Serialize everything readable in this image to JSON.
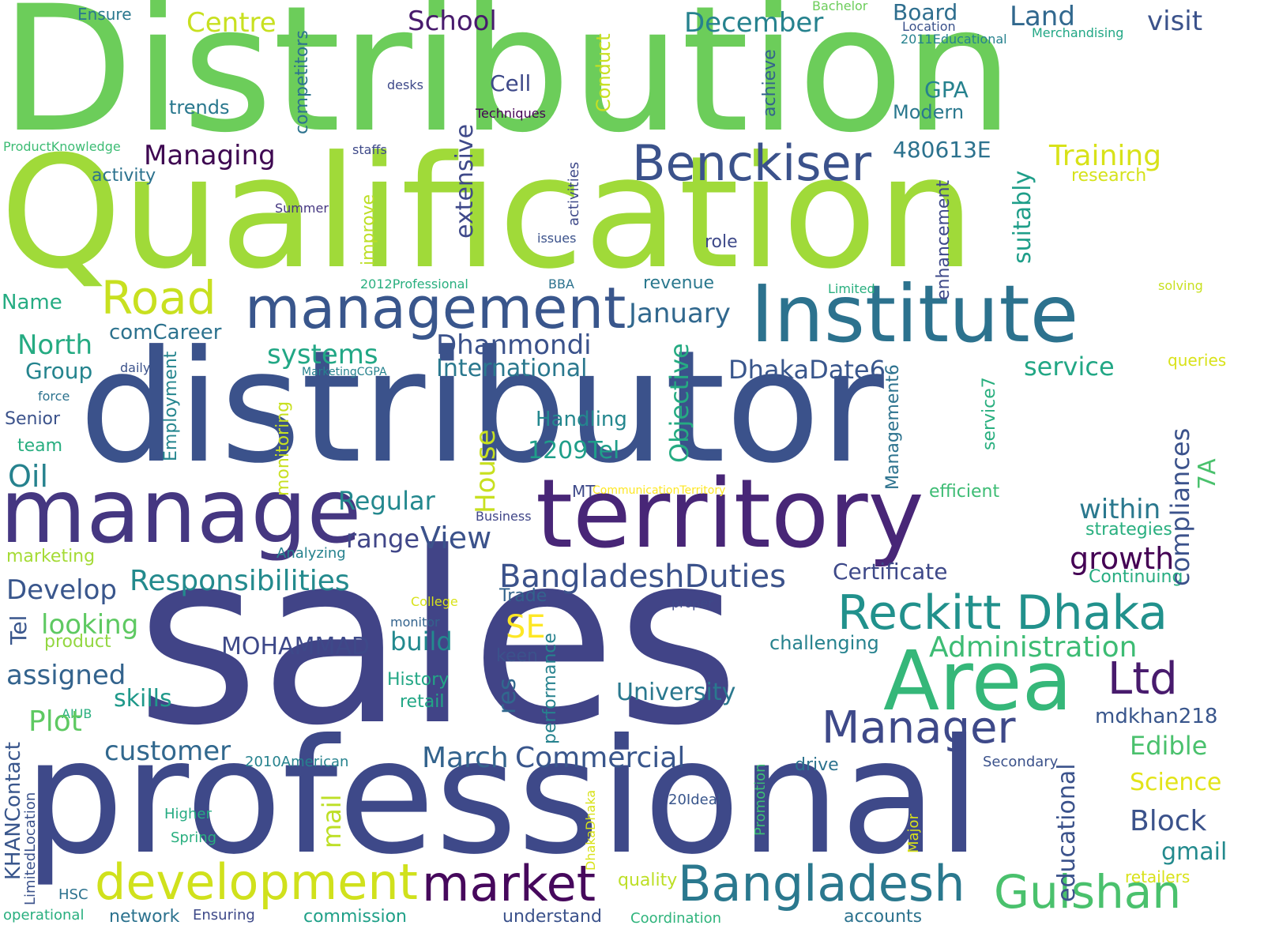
{
  "words": {
    "distribution": "Distribution",
    "qualification": "Qualification",
    "distributor": "distributor",
    "sales": "sales",
    "professional": "professional",
    "manage": "manage",
    "territory": "territory",
    "institute": "Institute",
    "management": "management",
    "area": "Area",
    "benckiser": "Benckiser",
    "reckitt_dhaka": "Reckitt Dhaka",
    "development": "development",
    "market": "market",
    "bangladesh": "Bangladesh",
    "gulshan": "Gulshan",
    "manager": "Manager",
    "ltd": "Ltd",
    "road": "Road",
    "school": "School",
    "centre": "Centre",
    "december": "December",
    "board": "Board",
    "land": "Land",
    "visit": "visit",
    "cell": "Cell",
    "gpa": "GPA",
    "modern": "Modern",
    "trends": "trends",
    "managing": "Managing",
    "num_480613e": "480613E",
    "training": "Training",
    "research": "research",
    "activity": "activity",
    "role": "role",
    "revenue": "revenue",
    "january": "January",
    "name": "Name",
    "north": "North",
    "comcareer": "comCareer",
    "systems": "systems",
    "dhanmondi": "Dhanmondi",
    "international": "International",
    "group": "Group",
    "dhakadate6": "DhakaDate6",
    "service": "service",
    "queries": "queries",
    "senior": "Senior",
    "handling": "Handling",
    "team": "team",
    "tel1209": "1209Tel",
    "oil": "Oil",
    "regular": "Regular",
    "within": "within",
    "efficient": "efficient",
    "mt": "MT",
    "strategies": "strategies",
    "business": "Business",
    "range": "range",
    "view": "View",
    "growth": "growth",
    "analyzing": "Analyzing",
    "marketing": "marketing",
    "responsibilities": "Responsibilities",
    "bangladeshduties": "BangladeshDuties",
    "certificate": "Certificate",
    "continuing": "Continuing",
    "develop": "Develop",
    "college": "College",
    "trade": "Trade",
    "proper": "proper",
    "looking": "looking",
    "monitor": "monitor",
    "se": "SE",
    "product": "product",
    "challenging": "challenging",
    "mohammad": "MOHAMMAD",
    "build": "build",
    "administration": "Administration",
    "keen": "keen",
    "assigned": "assigned",
    "history": "History",
    "university": "University",
    "skills": "skills",
    "retail": "retail",
    "aiub": "AIUB",
    "mdkhan218": "mdkhan218",
    "plot": "Plot",
    "edible": "Edible",
    "customer": "customer",
    "march": "March",
    "commercial": "Commercial",
    "american2010": "2010American",
    "drive": "drive",
    "secondary": "Secondary",
    "science": "Science",
    "ideal20": "20Ideal",
    "higher": "Higher",
    "block": "Block",
    "spring": "Spring",
    "gmail": "gmail",
    "retailers": "retailers",
    "quality": "quality",
    "hsc": "HSC",
    "operational": "operational",
    "network": "network",
    "ensuring": "Ensuring",
    "commission": "commission",
    "understand": "understand",
    "coordination": "Coordination",
    "accounts": "accounts",
    "ensure": "Ensure",
    "bachelor": "Bachelor",
    "location": "Location",
    "educational2011": "2011Educational",
    "merchandising": "Merchandising",
    "desks": "desks",
    "techniques": "Techniques",
    "productknowledge": "ProductKnowledge",
    "staffs": "staffs",
    "summer": "Summer",
    "issues": "issues",
    "professional2012": "2012Professional",
    "bba": "BBA",
    "limited": "Limited",
    "solving": "solving",
    "marketingcgpa": "MarketingCGPA",
    "daily": "daily",
    "force": "force",
    "communicationterritory": "CommunicationTerritory",
    "house": "House",
    "objective": "Objective",
    "compliances": "compliances",
    "educational": "educational",
    "mail": "mail",
    "res": "res",
    "performance": "performance",
    "seven_a": "7A",
    "employment": "Employment",
    "monitoring": "monitoring",
    "tel": "Tel",
    "khancontact": "KHANContact",
    "limitedlocation": "LimitedLocation",
    "extensive": "extensive",
    "improve": "improve",
    "activities": "activities",
    "competitors": "competitors",
    "conduct": "Conduct",
    "achieve": "achieve",
    "enhancement": "enhancement",
    "suitably": "suitably",
    "service7": "service7",
    "management6": "Management6",
    "promotion": "Promotion",
    "major": "Major",
    "dhakadhaka": "DhakaDhaka"
  }
}
